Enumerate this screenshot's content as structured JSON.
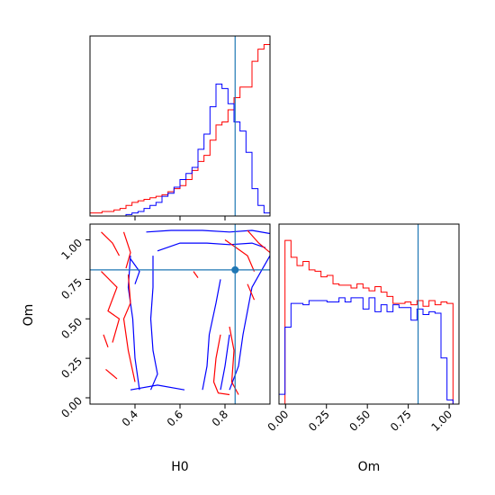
{
  "chart_data": {
    "type": "corner",
    "parameters": [
      "H0",
      "Om"
    ],
    "truths": {
      "H0": 0.845,
      "Om": 0.81
    },
    "colors": {
      "series_a": "#ff0000",
      "series_b": "#0000ff",
      "truth": "#1f77b4"
    },
    "x_ranges": {
      "H0": [
        0.2,
        1.0
      ],
      "Om": [
        -0.04,
        1.06
      ]
    },
    "y_ranges": {
      "Om": [
        -0.04,
        1.1
      ]
    },
    "hist_H0": {
      "x": [
        0.2,
        1.0
      ],
      "red": [
        0.02,
        0.02,
        0.03,
        0.03,
        0.04,
        0.05,
        0.07,
        0.09,
        0.1,
        0.11,
        0.12,
        0.13,
        0.14,
        0.16,
        0.18,
        0.2,
        0.24,
        0.3,
        0.36,
        0.4,
        0.5,
        0.6,
        0.62,
        0.7,
        0.78,
        0.85,
        0.85,
        1.02,
        1.1,
        1.13
      ],
      "blue": [
        0.0,
        0.0,
        0.0,
        0.0,
        0.0,
        0.0,
        0.01,
        0.02,
        0.03,
        0.05,
        0.07,
        0.09,
        0.13,
        0.15,
        0.19,
        0.24,
        0.28,
        0.32,
        0.44,
        0.54,
        0.72,
        0.87,
        0.84,
        0.74,
        0.62,
        0.56,
        0.42,
        0.18,
        0.07,
        0.02
      ]
    },
    "hist_Om": {
      "x": [
        -0.04,
        1.06
      ],
      "red": [
        0.0,
        1.17,
        1.05,
        0.99,
        1.02,
        0.96,
        0.95,
        0.91,
        0.92,
        0.86,
        0.85,
        0.85,
        0.83,
        0.86,
        0.83,
        0.81,
        0.84,
        0.8,
        0.77,
        0.72,
        0.72,
        0.73,
        0.71,
        0.74,
        0.7,
        0.74,
        0.71,
        0.73,
        0.72,
        0.0
      ],
      "blue": [
        0.07,
        0.55,
        0.72,
        0.72,
        0.71,
        0.74,
        0.74,
        0.74,
        0.73,
        0.73,
        0.76,
        0.73,
        0.76,
        0.76,
        0.68,
        0.76,
        0.66,
        0.71,
        0.66,
        0.71,
        0.69,
        0.69,
        0.6,
        0.68,
        0.64,
        0.66,
        0.65,
        0.33,
        0.03,
        0.0
      ]
    },
    "contours": {
      "blue": [
        [
          [
            0.45,
            1.05
          ],
          [
            0.56,
            1.06
          ],
          [
            0.7,
            1.06
          ],
          [
            0.82,
            1.05
          ],
          [
            0.92,
            1.06
          ],
          [
            1.0,
            1.04
          ]
        ],
        [
          [
            0.5,
            0.93
          ],
          [
            0.6,
            0.98
          ],
          [
            0.72,
            0.98
          ],
          [
            0.82,
            0.97
          ],
          [
            0.92,
            0.98
          ],
          [
            0.98,
            0.95
          ]
        ],
        [
          [
            0.48,
            0.9
          ],
          [
            0.48,
            0.7
          ],
          [
            0.47,
            0.5
          ],
          [
            0.48,
            0.3
          ],
          [
            0.5,
            0.15
          ],
          [
            0.47,
            0.05
          ]
        ],
        [
          [
            0.38,
            0.9
          ],
          [
            0.37,
            0.7
          ],
          [
            0.39,
            0.5
          ],
          [
            0.4,
            0.25
          ],
          [
            0.42,
            0.05
          ]
        ],
        [
          [
            0.38,
            0.05
          ],
          [
            0.5,
            0.08
          ],
          [
            0.62,
            0.05
          ]
        ],
        [
          [
            0.7,
            0.05
          ],
          [
            0.72,
            0.2
          ],
          [
            0.73,
            0.4
          ],
          [
            0.76,
            0.6
          ],
          [
            0.78,
            0.75
          ]
        ],
        [
          [
            0.82,
            0.05
          ],
          [
            0.86,
            0.2
          ],
          [
            0.88,
            0.4
          ],
          [
            0.9,
            0.55
          ],
          [
            0.92,
            0.7
          ],
          [
            0.96,
            0.8
          ],
          [
            1.0,
            0.9
          ]
        ],
        [
          [
            0.78,
            0.05
          ],
          [
            0.8,
            0.2
          ],
          [
            0.82,
            0.4
          ]
        ],
        [
          [
            0.38,
            0.88
          ],
          [
            0.42,
            0.8
          ],
          [
            0.4,
            0.72
          ]
        ]
      ],
      "red": [
        [
          [
            0.25,
            1.05
          ],
          [
            0.3,
            0.98
          ],
          [
            0.33,
            0.9
          ]
        ],
        [
          [
            0.35,
            1.05
          ],
          [
            0.38,
            0.92
          ],
          [
            0.36,
            0.82
          ]
        ],
        [
          [
            0.25,
            0.8
          ],
          [
            0.32,
            0.7
          ],
          [
            0.28,
            0.55
          ],
          [
            0.33,
            0.5
          ],
          [
            0.3,
            0.35
          ]
        ],
        [
          [
            0.37,
            0.78
          ],
          [
            0.38,
            0.6
          ],
          [
            0.35,
            0.5
          ],
          [
            0.37,
            0.3
          ],
          [
            0.4,
            0.1
          ]
        ],
        [
          [
            0.26,
            0.4
          ],
          [
            0.28,
            0.32
          ]
        ],
        [
          [
            0.27,
            0.18
          ],
          [
            0.32,
            0.12
          ]
        ],
        [
          [
            0.8,
            1.0
          ],
          [
            0.85,
            0.95
          ],
          [
            0.9,
            0.9
          ],
          [
            0.93,
            0.8
          ]
        ],
        [
          [
            0.9,
            1.06
          ],
          [
            0.95,
            0.98
          ],
          [
            1.0,
            0.92
          ]
        ],
        [
          [
            0.78,
            0.4
          ],
          [
            0.76,
            0.25
          ],
          [
            0.75,
            0.1
          ],
          [
            0.77,
            0.03
          ],
          [
            0.82,
            0.02
          ]
        ],
        [
          [
            0.82,
            0.45
          ],
          [
            0.84,
            0.3
          ],
          [
            0.83,
            0.1
          ],
          [
            0.86,
            0.02
          ]
        ],
        [
          [
            0.66,
            0.8
          ],
          [
            0.68,
            0.76
          ]
        ],
        [
          [
            0.9,
            0.72
          ],
          [
            0.93,
            0.62
          ]
        ]
      ]
    },
    "axis_labels": {
      "x_left": "H0",
      "y_left": "Om",
      "x_right": "Om"
    },
    "ticks": {
      "H0_x": {
        "values": [
          0.4,
          0.6,
          0.8
        ],
        "labels": [
          "0.4",
          "0.6",
          "0.8"
        ]
      },
      "Om_y": {
        "values": [
          0.0,
          0.25,
          0.5,
          0.75,
          1.0
        ],
        "labels": [
          "0.00",
          "0.25",
          "0.50",
          "0.75",
          "1.00"
        ]
      },
      "Om_x": {
        "values": [
          0.0,
          0.25,
          0.5,
          0.75,
          1.0
        ],
        "labels": [
          "0.00",
          "0.25",
          "0.50",
          "0.75",
          "1.00"
        ]
      }
    }
  }
}
